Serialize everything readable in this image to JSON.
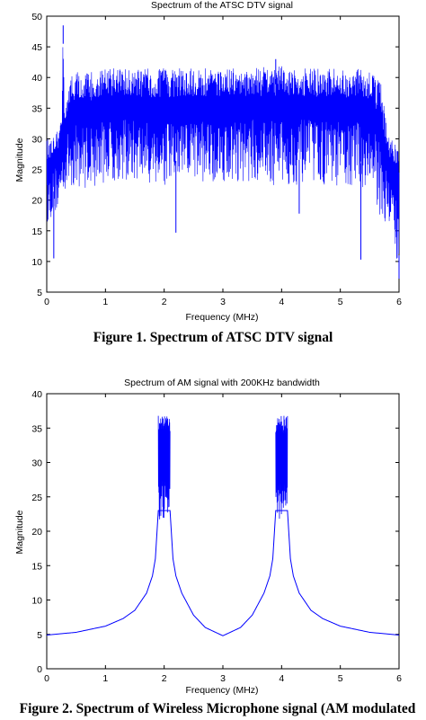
{
  "figures": [
    {
      "caption": "Figure 1. Spectrum of ATSC DTV signal"
    },
    {
      "caption": "Figure 2. Spectrum of Wireless Microphone signal (AM modulated"
    }
  ],
  "chart_data": [
    {
      "type": "line",
      "title": "Spectrum of the ATSC DTV signal",
      "xlabel": "Frequency (MHz)",
      "ylabel": "Magnitude",
      "xlim": [
        0,
        6
      ],
      "ylim": [
        5,
        50
      ],
      "xticks": [
        0,
        1,
        2,
        3,
        4,
        5,
        6
      ],
      "yticks": [
        5,
        10,
        15,
        20,
        25,
        30,
        35,
        40,
        45,
        50
      ],
      "grid": false,
      "color": "#0000ff",
      "series": [
        {
          "x": [
            0,
            0.05,
            0.1,
            0.15,
            0.2,
            0.25,
            0.28,
            0.3,
            0.35,
            0.4,
            0.45,
            0.5,
            0.6,
            0.8,
            1.0,
            1.5,
            2.0,
            2.5,
            3.0,
            3.5,
            4.0,
            4.5,
            5.0,
            5.4,
            5.5,
            5.6,
            5.7,
            5.8,
            5.9,
            6.0
          ],
          "upper": [
            30,
            30,
            31,
            32,
            32,
            33,
            48.5,
            35,
            38,
            40,
            40.5,
            41,
            41,
            41,
            41.5,
            41.5,
            41.5,
            41.5,
            41.5,
            41.5,
            42,
            41.5,
            41.5,
            41.5,
            41,
            40.5,
            39,
            31,
            30,
            29
          ],
          "lower": [
            16,
            17,
            17,
            18,
            18,
            19,
            21,
            21,
            22,
            22,
            22,
            22,
            22,
            22,
            23,
            23,
            22,
            23,
            23,
            23,
            22,
            23,
            22,
            22,
            22,
            19,
            17,
            16,
            14,
            7
          ]
        }
      ],
      "spikes": [
        {
          "x": 0.12,
          "y": 10.5
        },
        {
          "x": 0.28,
          "y": 48.5
        },
        {
          "x": 2.2,
          "y": 14.7
        },
        {
          "x": 3.9,
          "y": 43
        },
        {
          "x": 4.3,
          "y": 17.8
        },
        {
          "x": 5.35,
          "y": 10.3
        },
        {
          "x": 6.0,
          "y": 7.2
        }
      ]
    },
    {
      "type": "line",
      "title": "Spectrum of AM signal with 200KHz bandwidth",
      "xlabel": "Frequency (MHz)",
      "ylabel": "Magnitude",
      "xlim": [
        0,
        6
      ],
      "ylim": [
        0,
        40
      ],
      "xticks": [
        0,
        1,
        2,
        3,
        4,
        5,
        6
      ],
      "yticks": [
        0,
        5,
        10,
        15,
        20,
        25,
        30,
        35,
        40
      ],
      "grid": false,
      "color": "#0000ff",
      "series": [
        {
          "x": [
            0,
            0.5,
            1.0,
            1.3,
            1.5,
            1.7,
            1.8,
            1.85,
            1.9,
            2.1,
            2.15,
            2.2,
            2.3,
            2.5,
            2.7,
            3.0,
            3.3,
            3.5,
            3.7,
            3.8,
            3.85,
            3.9,
            4.1,
            4.15,
            4.2,
            4.3,
            4.5,
            4.7,
            5.0,
            5.5,
            6.0
          ],
          "y": [
            4.9,
            5.3,
            6.2,
            7.3,
            8.5,
            11.0,
            13.5,
            16.0,
            23.0,
            23.0,
            16.0,
            13.5,
            11.0,
            7.8,
            6.0,
            4.8,
            6.0,
            7.8,
            11.0,
            13.5,
            16.0,
            23.0,
            23.0,
            16.0,
            13.5,
            11.0,
            8.5,
            7.3,
            6.2,
            5.3,
            4.9
          ]
        }
      ],
      "bursts": [
        {
          "x_start": 1.9,
          "x_end": 2.1,
          "top": 36.8,
          "bottom": 21.5
        },
        {
          "x_start": 3.9,
          "x_end": 4.1,
          "top": 36.8,
          "bottom": 21.5
        }
      ]
    }
  ]
}
